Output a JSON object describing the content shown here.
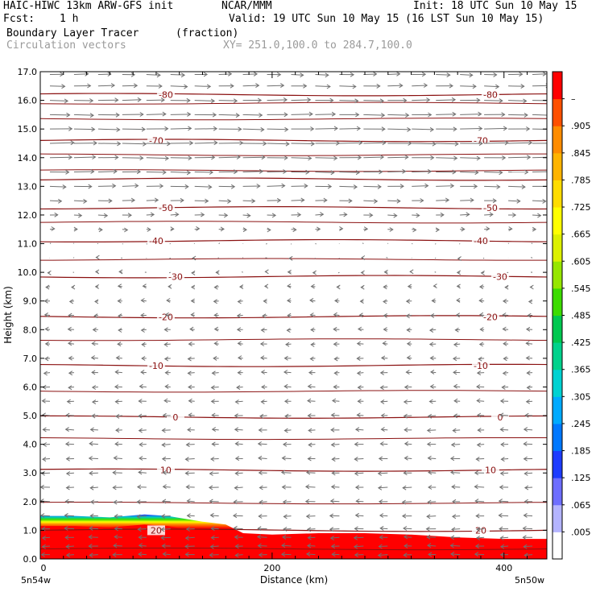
{
  "header": {
    "model": "HAIC-HIWC 13km ARW-GFS init",
    "org": "NCAR/MMM",
    "init": "Init: 18 UTC Sun 10 May 15",
    "fcst_label": "Fcst:",
    "fcst_value": "1 h",
    "valid": "Valid: 19 UTC Sun 10 May 15 (16 LST Sun 10 May 15)",
    "field": "Boundary Layer Tracer",
    "field_units": "(fraction)",
    "vectors": "Circulation vectors",
    "xy_range": "XY= 251.0,100.0 to 284.7,100.0"
  },
  "chart_data": {
    "type": "heatmap",
    "xlabel": "Distance (km)",
    "ylabel": "Height (km)",
    "xlim": [
      0,
      437
    ],
    "ylim": [
      0,
      17
    ],
    "x_ticks": [
      "0",
      "200",
      "400"
    ],
    "x_tick_values": [
      0,
      200,
      400
    ],
    "x_corner_labels": [
      "5n54w",
      "5n50w"
    ],
    "y_ticks": [
      "0.0",
      "1.0",
      "2.0",
      "3.0",
      "4.0",
      "5.0",
      "6.0",
      "7.0",
      "8.0",
      "9.0",
      "10.0",
      "11.0",
      "12.0",
      "13.0",
      "14.0",
      "15.0",
      "16.0",
      "17.0"
    ],
    "colorbar": {
      "labels": [
        ".005",
        ".065",
        ".125",
        ".185",
        ".245",
        ".305",
        ".365",
        ".425",
        ".485",
        ".545",
        ".605",
        ".665",
        ".725",
        ".785",
        ".845",
        ".905",
        "–"
      ],
      "colors": [
        "#ffffff",
        "#b4b4ff",
        "#6e6eff",
        "#1e3cff",
        "#0078ff",
        "#00aaff",
        "#00d2d2",
        "#00d28c",
        "#00c850",
        "#3cdc00",
        "#96e600",
        "#dcf000",
        "#ffff00",
        "#ffdc00",
        "#ffb400",
        "#ff8c00",
        "#ff5000",
        "#ff0000"
      ]
    },
    "tracer_top_km": [
      {
        "x": 0,
        "y": 1.5
      },
      {
        "x": 30,
        "y": 1.5
      },
      {
        "x": 60,
        "y": 1.45
      },
      {
        "x": 90,
        "y": 1.55
      },
      {
        "x": 110,
        "y": 1.5
      },
      {
        "x": 140,
        "y": 1.3
      },
      {
        "x": 160,
        "y": 1.2
      },
      {
        "x": 175,
        "y": 0.9
      },
      {
        "x": 200,
        "y": 0.85
      },
      {
        "x": 240,
        "y": 0.9
      },
      {
        "x": 280,
        "y": 0.9
      },
      {
        "x": 320,
        "y": 0.85
      },
      {
        "x": 360,
        "y": 0.75
      },
      {
        "x": 400,
        "y": 0.7
      },
      {
        "x": 437,
        "y": 0.7
      }
    ],
    "temperature_contours": [
      {
        "value": 20,
        "label": "20",
        "height_km": 1.0
      },
      {
        "value": 10,
        "label": "10",
        "height_km": 3.1
      },
      {
        "value": 0,
        "label": "0",
        "height_km": 4.95
      },
      {
        "value": -10,
        "label": "-10",
        "height_km": 6.75
      },
      {
        "value": -20,
        "label": "-20",
        "height_km": 8.45
      },
      {
        "value": -30,
        "label": "-30",
        "height_km": 9.85
      },
      {
        "value": -40,
        "label": "-40",
        "height_km": 11.1
      },
      {
        "value": -50,
        "label": "-50",
        "height_km": 12.25
      },
      {
        "value": -60,
        "label": "",
        "height_km": 13.25
      },
      {
        "value": -70,
        "label": "-70",
        "height_km": 14.6
      },
      {
        "value": -80,
        "label": "-80",
        "height_km": 16.2
      }
    ],
    "isentrope_heights_km": [
      0.35,
      1.95,
      4.2,
      5.85,
      7.65,
      10.45,
      11.75,
      13.55,
      14.1,
      15.35,
      15.9
    ],
    "vector_rows_km": [
      0.15,
      0.45,
      0.75,
      1.05,
      1.5,
      2.0,
      2.5,
      3.0,
      3.5,
      4.0,
      4.5,
      5.0,
      5.5,
      6.0,
      6.5,
      7.0,
      7.5,
      8.0,
      8.5,
      9.0,
      9.5,
      10.0,
      10.5,
      11.0,
      11.5,
      12.0,
      12.5,
      13.0,
      13.5,
      14.0,
      14.5,
      15.0,
      15.5,
      16.0,
      16.5,
      16.9
    ],
    "wind_u_by_height": [
      {
        "z": 0,
        "u": -4
      },
      {
        "z": 3,
        "u": -4
      },
      {
        "z": 6,
        "u": -3
      },
      {
        "z": 9,
        "u": -2
      },
      {
        "z": 11,
        "u": 0
      },
      {
        "z": 12,
        "u": 4
      },
      {
        "z": 13,
        "u": 8
      },
      {
        "z": 14.5,
        "u": 11
      },
      {
        "z": 16,
        "u": 9
      },
      {
        "z": 17,
        "u": 6
      }
    ]
  }
}
